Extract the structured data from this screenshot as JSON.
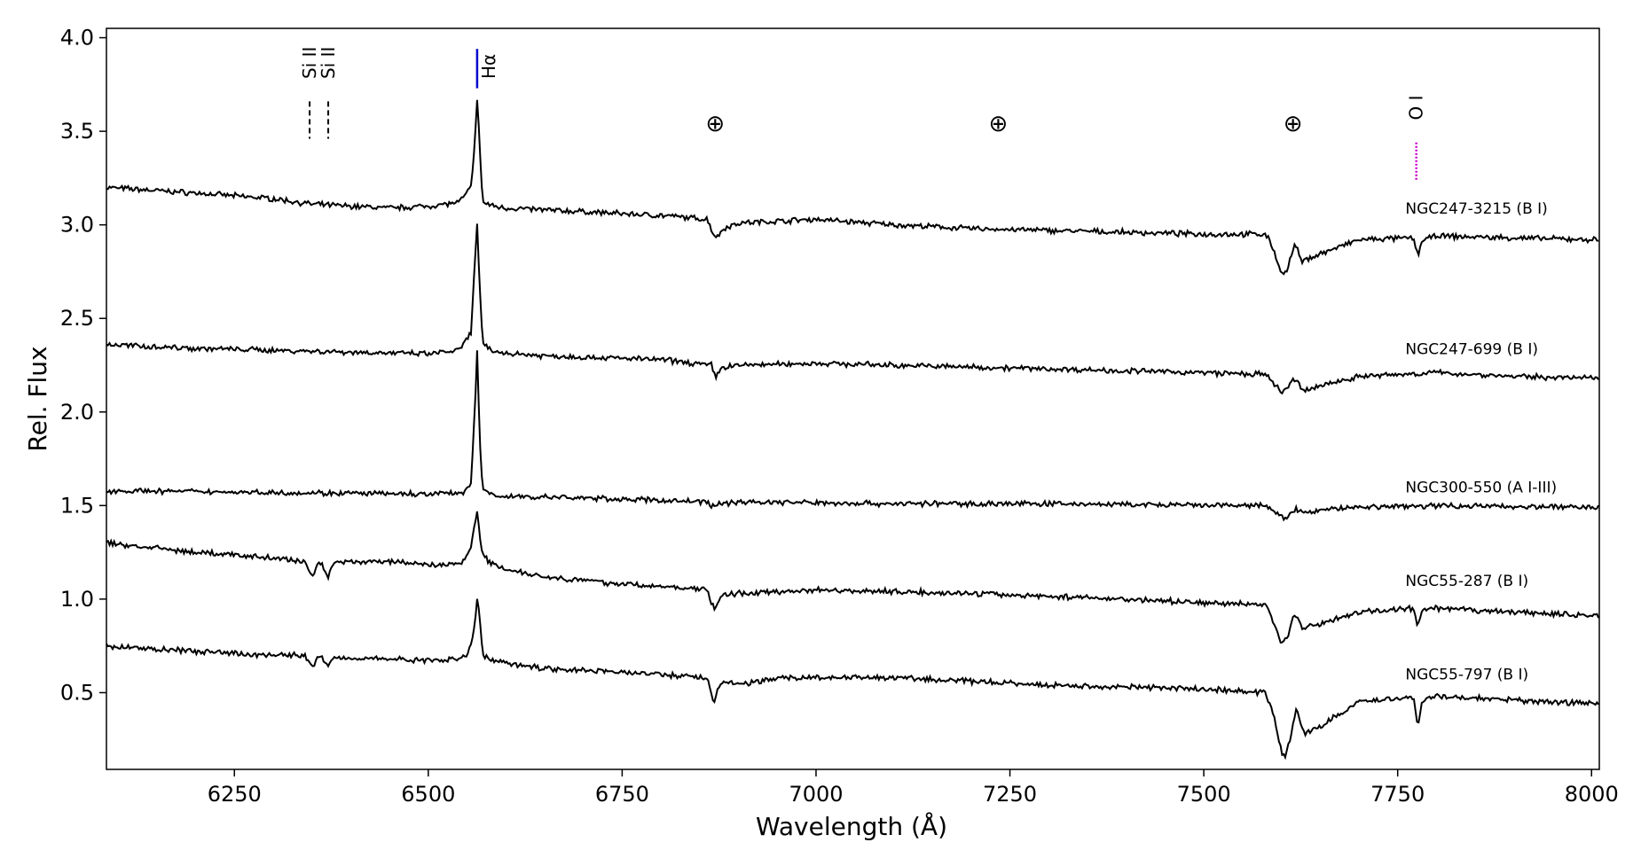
{
  "chart_data": {
    "type": "line",
    "xlabel": "Wavelength (Å)",
    "ylabel": "Rel. Flux",
    "xlim": [
      6085,
      8010
    ],
    "ylim": [
      0.09,
      4.05
    ],
    "xticks": [
      6250,
      6500,
      6750,
      7000,
      7250,
      7500,
      7750,
      8000
    ],
    "yticks": [
      0.5,
      1.0,
      1.5,
      2.0,
      2.5,
      3.0,
      3.5,
      4.0
    ],
    "grid": false,
    "series": [
      {
        "name": "NGC247-3215 (B I)",
        "color": "#000000",
        "x": [
          6085,
          6200,
          6300,
          6350,
          6400,
          6450,
          6500,
          6540,
          6555,
          6560,
          6563,
          6566,
          6570,
          6585,
          6600,
          6700,
          6800,
          6860,
          6868,
          6872,
          6880,
          6900,
          7000,
          7100,
          7200,
          7300,
          7400,
          7500,
          7580,
          7590,
          7598,
          7606,
          7614,
          7618,
          7626,
          7640,
          7700,
          7770,
          7776,
          7782,
          7800,
          7900,
          8010
        ],
        "y": [
          3.2,
          3.17,
          3.14,
          3.11,
          3.1,
          3.09,
          3.1,
          3.12,
          3.2,
          3.45,
          3.66,
          3.45,
          3.12,
          3.1,
          3.09,
          3.07,
          3.05,
          3.03,
          2.95,
          2.93,
          2.98,
          3.01,
          3.03,
          3.0,
          2.98,
          2.97,
          2.96,
          2.95,
          2.95,
          2.87,
          2.76,
          2.74,
          2.85,
          2.9,
          2.8,
          2.83,
          2.92,
          2.93,
          2.84,
          2.92,
          2.94,
          2.93,
          2.92
        ]
      },
      {
        "name": "NGC247-699 (B I)",
        "color": "#000000",
        "x": [
          6085,
          6200,
          6300,
          6400,
          6500,
          6540,
          6555,
          6560,
          6563,
          6566,
          6570,
          6585,
          6650,
          6800,
          6865,
          6870,
          6880,
          6900,
          7000,
          7200,
          7400,
          7500,
          7580,
          7592,
          7600,
          7608,
          7614,
          7618,
          7628,
          7650,
          7700,
          7800,
          7900,
          8010
        ],
        "y": [
          2.36,
          2.34,
          2.33,
          2.32,
          2.31,
          2.33,
          2.42,
          2.8,
          3.0,
          2.7,
          2.36,
          2.32,
          2.3,
          2.28,
          2.25,
          2.19,
          2.24,
          2.25,
          2.26,
          2.24,
          2.22,
          2.21,
          2.2,
          2.14,
          2.11,
          2.12,
          2.18,
          2.17,
          2.11,
          2.14,
          2.19,
          2.21,
          2.19,
          2.18
        ]
      },
      {
        "name": "NGC300-550 (A I-III)",
        "color": "#000000",
        "x": [
          6085,
          6300,
          6500,
          6545,
          6555,
          6560,
          6563,
          6566,
          6570,
          6590,
          6700,
          6860,
          6868,
          6876,
          6900,
          7100,
          7300,
          7500,
          7580,
          7595,
          7606,
          7614,
          7619,
          7630,
          7680,
          7800,
          8010
        ],
        "y": [
          1.58,
          1.57,
          1.56,
          1.57,
          1.62,
          2.0,
          2.32,
          1.9,
          1.58,
          1.55,
          1.54,
          1.52,
          1.49,
          1.51,
          1.52,
          1.51,
          1.51,
          1.5,
          1.5,
          1.45,
          1.43,
          1.47,
          1.48,
          1.46,
          1.49,
          1.5,
          1.49
        ],
        "marks_outside_xlim": "none"
      },
      {
        "name": "NGC55-287 (B I)",
        "color": "#000000",
        "x": [
          6085,
          6200,
          6300,
          6340,
          6352,
          6356,
          6362,
          6371,
          6375,
          6380,
          6450,
          6520,
          6545,
          6555,
          6560,
          6563,
          6566,
          6570,
          6590,
          6650,
          6750,
          6860,
          6868,
          6872,
          6880,
          6900,
          7000,
          7200,
          7400,
          7500,
          7580,
          7592,
          7600,
          7608,
          7614,
          7619,
          7628,
          7650,
          7700,
          7770,
          7776,
          7782,
          7800,
          7900,
          8010
        ],
        "y": [
          1.3,
          1.25,
          1.22,
          1.2,
          1.12,
          1.18,
          1.2,
          1.11,
          1.17,
          1.2,
          1.2,
          1.18,
          1.2,
          1.28,
          1.42,
          1.46,
          1.35,
          1.23,
          1.17,
          1.12,
          1.08,
          1.05,
          0.95,
          0.97,
          1.02,
          1.03,
          1.05,
          1.03,
          1.0,
          0.98,
          0.97,
          0.85,
          0.77,
          0.8,
          0.9,
          0.91,
          0.84,
          0.87,
          0.93,
          0.95,
          0.85,
          0.94,
          0.95,
          0.93,
          0.91
        ]
      },
      {
        "name": "NGC55-797 (B I)",
        "color": "#000000",
        "x": [
          6085,
          6200,
          6300,
          6340,
          6352,
          6356,
          6362,
          6371,
          6375,
          6380,
          6450,
          6520,
          6550,
          6558,
          6563,
          6566,
          6570,
          6585,
          6650,
          6750,
          6860,
          6868,
          6872,
          6880,
          6900,
          6950,
          7100,
          7300,
          7500,
          7580,
          7592,
          7600,
          7606,
          7614,
          7619,
          7630,
          7650,
          7700,
          7770,
          7776,
          7782,
          7800,
          7900,
          8010
        ],
        "y": [
          0.75,
          0.72,
          0.7,
          0.7,
          0.64,
          0.68,
          0.69,
          0.64,
          0.68,
          0.69,
          0.68,
          0.67,
          0.7,
          0.8,
          1.0,
          0.92,
          0.7,
          0.67,
          0.63,
          0.61,
          0.58,
          0.45,
          0.5,
          0.56,
          0.54,
          0.58,
          0.58,
          0.54,
          0.52,
          0.5,
          0.35,
          0.18,
          0.16,
          0.3,
          0.42,
          0.28,
          0.32,
          0.45,
          0.48,
          0.32,
          0.46,
          0.48,
          0.46,
          0.44
        ]
      }
    ],
    "line_markers": [
      {
        "label": "Si II",
        "x": 6347,
        "style": "dashed",
        "color": "#000000"
      },
      {
        "label": "Si II",
        "x": 6371,
        "style": "dashed",
        "color": "#000000"
      },
      {
        "label": "Hα",
        "x": 6563,
        "style": "solid",
        "color": "#0000cc"
      },
      {
        "label": "O I",
        "x": 7774,
        "style": "dotted",
        "color": "#cc00cc"
      }
    ],
    "telluric_markers": [
      {
        "symbol": "⊕",
        "x": 6870
      },
      {
        "symbol": "⊕",
        "x": 7235
      },
      {
        "symbol": "⊕",
        "x": 7615
      }
    ]
  }
}
